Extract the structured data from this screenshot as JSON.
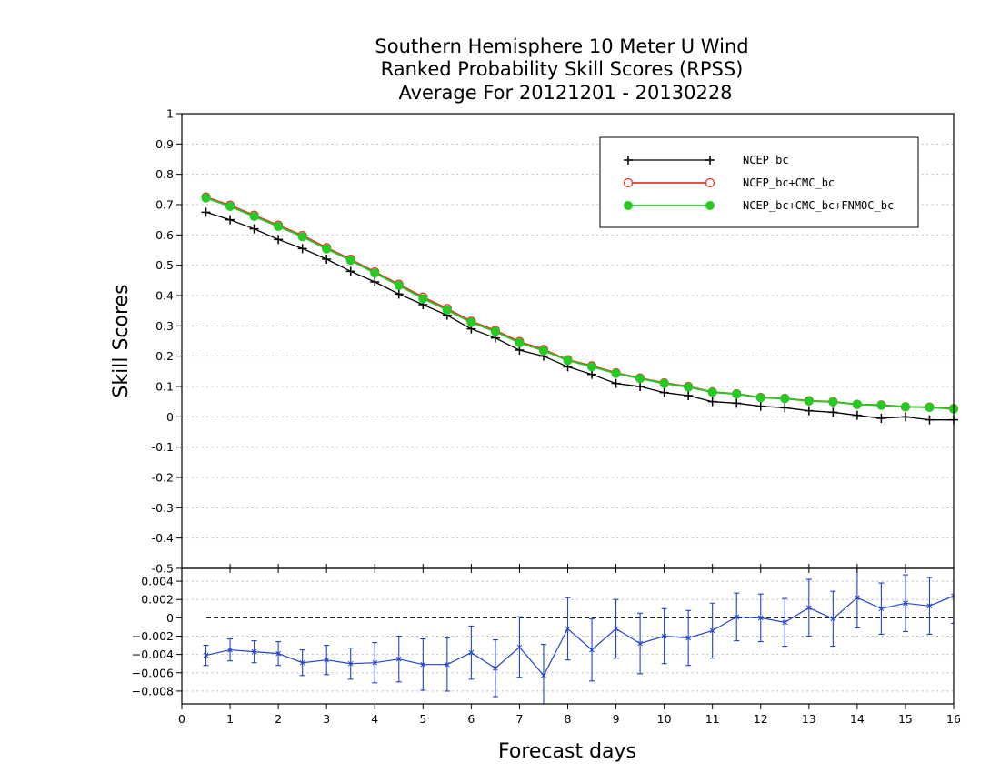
{
  "chart_data": [
    {
      "type": "line",
      "title": [
        "Southern Hemisphere 10 Meter U Wind",
        "Ranked Probability Skill Scores (RPSS)",
        "Average For 20121201 - 20130228"
      ],
      "ylabel": "Skill Scores",
      "xlim": [
        0,
        16
      ],
      "ylim": [
        -0.5,
        1
      ],
      "yticks": [
        "1",
        "0.9",
        "0.8",
        "0.7",
        "0.6",
        "0.5",
        "0.4",
        "0.3",
        "0.2",
        "0.1",
        "0",
        "-0.1",
        "-0.2",
        "-0.3",
        "-0.4",
        "-0.5"
      ],
      "grid": true,
      "legend_position": "top-right",
      "x": [
        0.5,
        1,
        1.5,
        2,
        2.5,
        3,
        3.5,
        4,
        4.5,
        5,
        5.5,
        6,
        6.5,
        7,
        7.5,
        8,
        8.5,
        9,
        9.5,
        10,
        10.5,
        11,
        11.5,
        12,
        12.5,
        13,
        13.5,
        14,
        14.5,
        15,
        15.5,
        16
      ],
      "series": [
        {
          "name": "NCEP_bc",
          "color": "#000000",
          "marker": "plus",
          "values": [
            0.675,
            0.65,
            0.62,
            0.585,
            0.555,
            0.52,
            0.48,
            0.445,
            0.405,
            0.37,
            0.335,
            0.29,
            0.26,
            0.22,
            0.2,
            0.165,
            0.14,
            0.11,
            0.1,
            0.08,
            0.07,
            0.05,
            0.045,
            0.035,
            0.03,
            0.02,
            0.015,
            0.005,
            -0.005,
            0.0,
            -0.01,
            -0.01
          ]
        },
        {
          "name": "NCEP_bc+CMC_bc",
          "color": "#e8352b",
          "marker": "open-circle",
          "values": [
            0.725,
            0.698,
            0.665,
            0.632,
            0.598,
            0.558,
            0.52,
            0.478,
            0.437,
            0.395,
            0.357,
            0.315,
            0.285,
            0.248,
            0.222,
            0.188,
            0.168,
            0.145,
            0.128,
            0.112,
            0.1,
            0.082,
            0.076,
            0.064,
            0.061,
            0.053,
            0.05,
            0.041,
            0.039,
            0.033,
            0.032,
            0.027
          ]
        },
        {
          "name": "NCEP_bc+CMC_bc+FNMOC_bc",
          "color": "#22cc22",
          "marker": "filled-circle",
          "values": [
            0.722,
            0.694,
            0.661,
            0.628,
            0.594,
            0.554,
            0.516,
            0.474,
            0.433,
            0.39,
            0.352,
            0.311,
            0.281,
            0.244,
            0.218,
            0.186,
            0.165,
            0.143,
            0.126,
            0.11,
            0.098,
            0.081,
            0.075,
            0.063,
            0.06,
            0.052,
            0.049,
            0.041,
            0.038,
            0.033,
            0.031,
            0.026
          ]
        }
      ]
    },
    {
      "type": "line",
      "xlabel": "Forecast days",
      "xlim": [
        0,
        16
      ],
      "ylim": [
        -0.0094,
        0.0054
      ],
      "xticks": [
        "0",
        "1",
        "2",
        "3",
        "4",
        "5",
        "6",
        "7",
        "8",
        "9",
        "10",
        "11",
        "12",
        "13",
        "14",
        "15",
        "16"
      ],
      "yticks": [
        "0.004",
        "0.002",
        "0",
        "−0.002",
        "−0.004",
        "−0.006",
        "−0.008"
      ],
      "grid": true,
      "x": [
        0.5,
        1,
        1.5,
        2,
        2.5,
        3,
        3.5,
        4,
        4.5,
        5,
        5.5,
        6,
        6.5,
        7,
        7.5,
        8,
        8.5,
        9,
        9.5,
        10,
        10.5,
        11,
        11.5,
        12,
        12.5,
        13,
        13.5,
        14,
        14.5,
        15,
        15.5,
        16
      ],
      "series": [
        {
          "color": "#2244cc",
          "values": [
            -0.0041,
            -0.0035,
            -0.0037,
            -0.0039,
            -0.0049,
            -0.0046,
            -0.005,
            -0.0049,
            -0.0045,
            -0.0051,
            -0.0051,
            -0.0038,
            -0.0055,
            -0.0032,
            -0.0063,
            -0.0012,
            -0.0035,
            -0.0012,
            -0.0028,
            -0.002,
            -0.0022,
            -0.0014,
            0.0001,
            0.0,
            -0.0005,
            0.0011,
            -0.0001,
            0.0022,
            0.001,
            0.0016,
            0.0013,
            0.0024
          ],
          "error": [
            0.0011,
            0.0012,
            0.0012,
            0.0013,
            0.0014,
            0.0016,
            0.0017,
            0.0022,
            0.0025,
            0.0028,
            0.0029,
            0.0029,
            0.0031,
            0.0033,
            0.0034,
            0.0034,
            0.0034,
            0.0032,
            0.0033,
            0.003,
            0.003,
            0.003,
            0.0026,
            0.0026,
            0.0026,
            0.0031,
            0.003,
            0.0033,
            0.0028,
            0.0031,
            0.0031,
            0.003
          ]
        }
      ]
    }
  ]
}
